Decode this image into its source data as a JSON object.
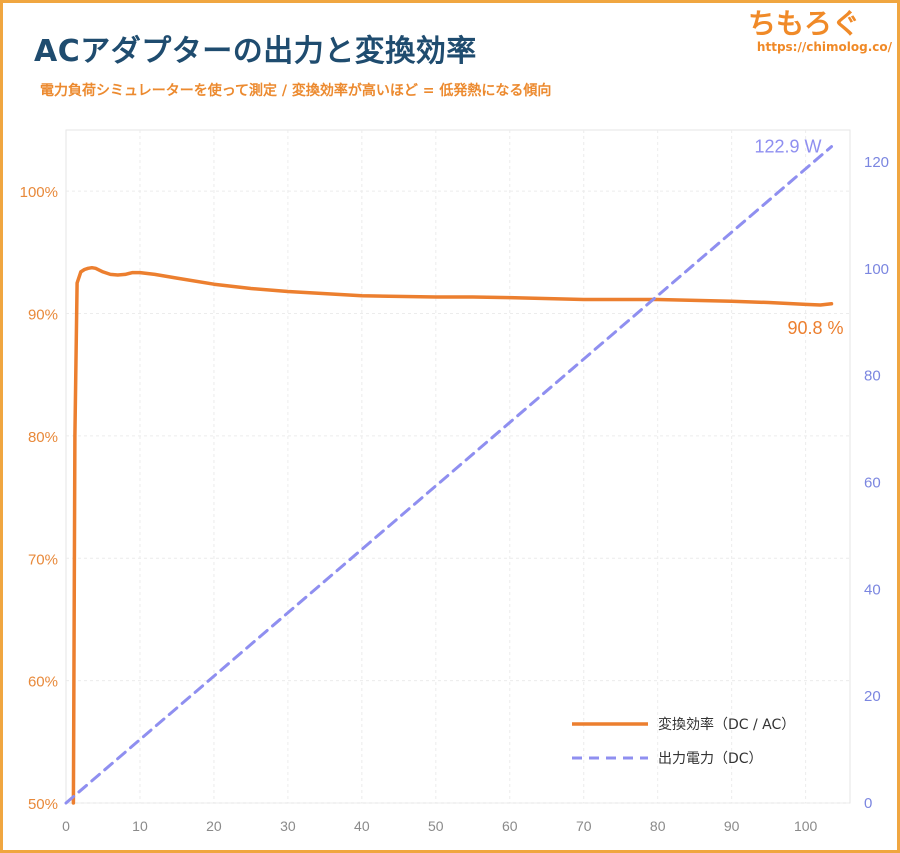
{
  "header": {
    "title": "ACアダプターの出力と変換効率",
    "subtitle": "電力負荷シミュレーターを使って測定 / 変換効率が高いほど = 低発熱になる傾向"
  },
  "brand": {
    "name": "ちもろぐ",
    "url": "https://chimolog.co/"
  },
  "colors": {
    "efficiency": "#ec7f2f",
    "power": "#8f8ff0",
    "right_axis_text": "#7b86e0",
    "left_axis_text": "#e8893a",
    "title": "#1f4c6f",
    "border": "#f0a640"
  },
  "chart_data": {
    "type": "line",
    "x_ticks": [
      "0",
      "10",
      "20",
      "30",
      "40",
      "50",
      "60",
      "70",
      "80",
      "90",
      "100"
    ],
    "xlim": [
      0,
      106
    ],
    "y_left_ticks": [
      "50%",
      "60%",
      "70%",
      "80%",
      "90%",
      "100%"
    ],
    "ylim_left": [
      50,
      105
    ],
    "y_right_ticks": [
      "0",
      "20",
      "40",
      "60",
      "80",
      "100",
      "120"
    ],
    "ylim_right": [
      0,
      126
    ],
    "grid": true,
    "legend_position": "bottom-right",
    "series": [
      {
        "name": "変換効率（DC / AC）",
        "axis": "left",
        "style": "solid",
        "color": "#ec7f2f",
        "end_label": "90.8 %",
        "x": [
          1,
          1.2,
          1.5,
          2,
          2.5,
          3,
          3.5,
          4,
          5,
          6,
          7,
          8,
          9,
          10,
          12,
          15,
          20,
          25,
          30,
          40,
          50,
          55,
          60,
          70,
          75,
          80,
          90,
          95,
          100,
          102,
          103.5
        ],
        "y": [
          50,
          80,
          92.5,
          93.4,
          93.6,
          93.7,
          93.75,
          93.7,
          93.4,
          93.2,
          93.15,
          93.2,
          93.35,
          93.35,
          93.2,
          92.9,
          92.4,
          92.05,
          91.8,
          91.45,
          91.35,
          91.35,
          91.3,
          91.15,
          91.15,
          91.15,
          91.0,
          90.9,
          90.75,
          90.7,
          90.8
        ]
      },
      {
        "name": "出力電力（DC）",
        "axis": "right",
        "style": "dashed",
        "color": "#8f8ff0",
        "end_label": "122.9 W",
        "x": [
          0,
          103.5
        ],
        "y": [
          0,
          122.9
        ]
      }
    ]
  }
}
